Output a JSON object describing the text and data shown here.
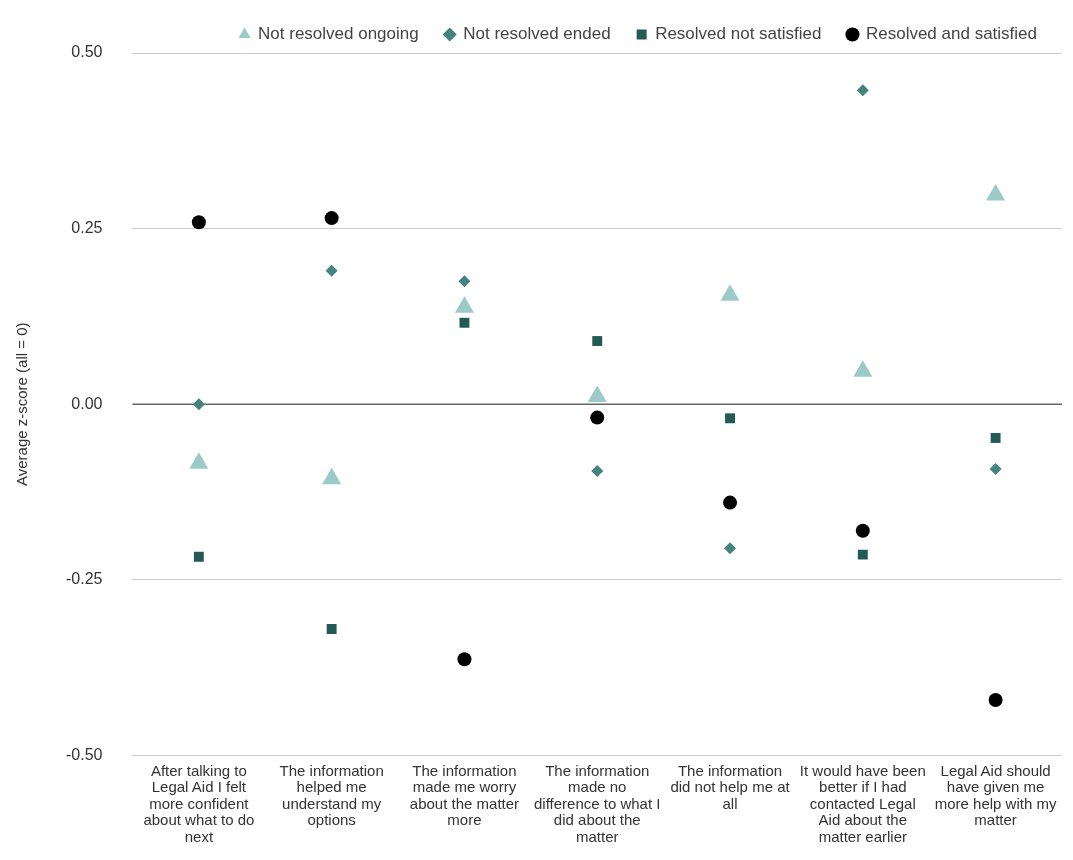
{
  "chart_data": {
    "type": "scatter",
    "ylabel": "Average z-score (all = 0)",
    "categories": [
      "After talking to Legal Aid I felt more confident about what to do next",
      "The information helped me understand my options",
      "The information made me worry about the matter more",
      "The information made no difference to what I did about the matter",
      "The information did not help me at all",
      "It would have been better if I had contacted Legal Aid about the matter earlier",
      "Legal Aid should have given me more help with my matter"
    ],
    "series": [
      {
        "name": "Not resolved ongoing",
        "color": "#9ccac9",
        "marker": "triangle",
        "values": [
          -0.084,
          -0.106,
          0.138,
          0.011,
          0.155,
          0.047,
          0.298
        ]
      },
      {
        "name": "Not resolved ended",
        "color": "#44847f",
        "marker": "diamond",
        "values": [
          0,
          0.19,
          0.175,
          -0.095,
          -0.205,
          0.447,
          -0.092
        ]
      },
      {
        "name": "Resolved not satisfied",
        "color": "#245a56",
        "marker": "square",
        "values": [
          -0.217,
          -0.32,
          0.116,
          0.09,
          -0.02,
          -0.214,
          -0.048
        ]
      },
      {
        "name": "Resolved and satisfied",
        "color": "#000000",
        "marker": "circle",
        "values": [
          0.259,
          0.265,
          -0.363,
          -0.019,
          -0.14,
          -0.18,
          -0.421
        ]
      }
    ],
    "ylim": [
      -0.5,
      0.5
    ],
    "yticks": [
      {
        "value": -0.5,
        "label": "-0.50"
      },
      {
        "value": -0.25,
        "label": "-0.25"
      },
      {
        "value": 0,
        "label": "0.00"
      },
      {
        "value": 0.25,
        "label": "0.25"
      },
      {
        "value": 0.5,
        "label": "0.50"
      }
    ],
    "ref_lines": [
      {
        "axis": "y",
        "value": 0,
        "color": "#666666"
      }
    ],
    "grid": "y",
    "legend": "top right"
  }
}
